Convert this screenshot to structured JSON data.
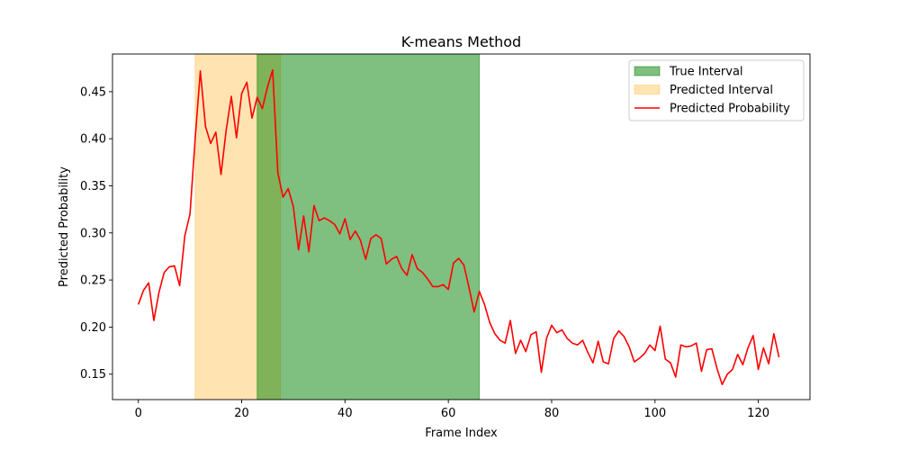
{
  "chart_data": {
    "type": "line",
    "title": "K-means Method",
    "xlabel": "Frame Index",
    "ylabel": "Predicted Probability",
    "xlim": [
      -5,
      130
    ],
    "ylim": [
      0.123,
      0.49
    ],
    "xticks": [
      0,
      20,
      40,
      60,
      80,
      100,
      120
    ],
    "yticks": [
      0.15,
      0.2,
      0.25,
      0.3,
      0.35,
      0.4,
      0.45
    ],
    "ytick_labels": [
      "0.15",
      "0.20",
      "0.25",
      "0.30",
      "0.35",
      "0.40",
      "0.45"
    ],
    "legend_position": "upper right",
    "legend": [
      {
        "label": "True Interval",
        "kind": "patch",
        "color": "#008000",
        "opacity": 0.5
      },
      {
        "label": "Predicted Interval",
        "kind": "patch",
        "color": "#ffa500",
        "opacity": 0.3
      },
      {
        "label": "Predicted Probability",
        "kind": "line",
        "color": "#ff0000"
      }
    ],
    "intervals": [
      {
        "name": "Predicted Interval",
        "x_start": 11,
        "x_end": 27.5,
        "color": "#ffa500",
        "opacity": 0.3
      },
      {
        "name": "True Interval",
        "x_start": 23,
        "x_end": 66,
        "color": "#008000",
        "opacity": 0.5
      }
    ],
    "series": [
      {
        "name": "Predicted Probability",
        "color": "#ff0000",
        "x": [
          0,
          1,
          2,
          3,
          4,
          5,
          6,
          7,
          8,
          9,
          10,
          11,
          12,
          13,
          14,
          15,
          16,
          17,
          18,
          19,
          20,
          21,
          22,
          23,
          24,
          25,
          26,
          27,
          28,
          29,
          30,
          31,
          32,
          33,
          34,
          35,
          36,
          37,
          38,
          39,
          40,
          41,
          42,
          43,
          44,
          45,
          46,
          47,
          48,
          49,
          50,
          51,
          52,
          53,
          54,
          55,
          56,
          57,
          58,
          59,
          60,
          61,
          62,
          63,
          64,
          65,
          66,
          67,
          68,
          69,
          70,
          71,
          72,
          73,
          74,
          75,
          76,
          77,
          78,
          79,
          80,
          81,
          82,
          83,
          84,
          85,
          86,
          87,
          88,
          89,
          90,
          91,
          92,
          93,
          94,
          95,
          96,
          97,
          98,
          99,
          100,
          101,
          102,
          103,
          104,
          105,
          106,
          107,
          108,
          109,
          110,
          111,
          112,
          113,
          114,
          115,
          116,
          117,
          118,
          119,
          120,
          121,
          122,
          123,
          124
        ],
        "values": [
          0.224,
          0.239,
          0.247,
          0.207,
          0.237,
          0.258,
          0.264,
          0.265,
          0.244,
          0.297,
          0.32,
          0.4,
          0.472,
          0.413,
          0.395,
          0.407,
          0.362,
          0.409,
          0.445,
          0.401,
          0.448,
          0.46,
          0.422,
          0.444,
          0.432,
          0.455,
          0.473,
          0.364,
          0.338,
          0.347,
          0.328,
          0.282,
          0.318,
          0.28,
          0.329,
          0.313,
          0.316,
          0.313,
          0.309,
          0.299,
          0.315,
          0.293,
          0.302,
          0.292,
          0.272,
          0.294,
          0.298,
          0.294,
          0.267,
          0.272,
          0.275,
          0.262,
          0.255,
          0.277,
          0.262,
          0.258,
          0.251,
          0.243,
          0.243,
          0.245,
          0.24,
          0.268,
          0.273,
          0.266,
          0.242,
          0.216,
          0.238,
          0.224,
          0.205,
          0.193,
          0.186,
          0.183,
          0.207,
          0.172,
          0.186,
          0.174,
          0.192,
          0.195,
          0.152,
          0.188,
          0.202,
          0.194,
          0.197,
          0.188,
          0.183,
          0.181,
          0.186,
          0.173,
          0.162,
          0.185,
          0.163,
          0.161,
          0.188,
          0.196,
          0.19,
          0.179,
          0.163,
          0.167,
          0.172,
          0.181,
          0.175,
          0.201,
          0.166,
          0.162,
          0.147,
          0.181,
          0.179,
          0.18,
          0.183,
          0.153,
          0.176,
          0.177,
          0.156,
          0.139,
          0.15,
          0.155,
          0.171,
          0.16,
          0.178,
          0.191,
          0.155,
          0.178,
          0.161,
          0.193,
          0.168
        ]
      }
    ]
  }
}
